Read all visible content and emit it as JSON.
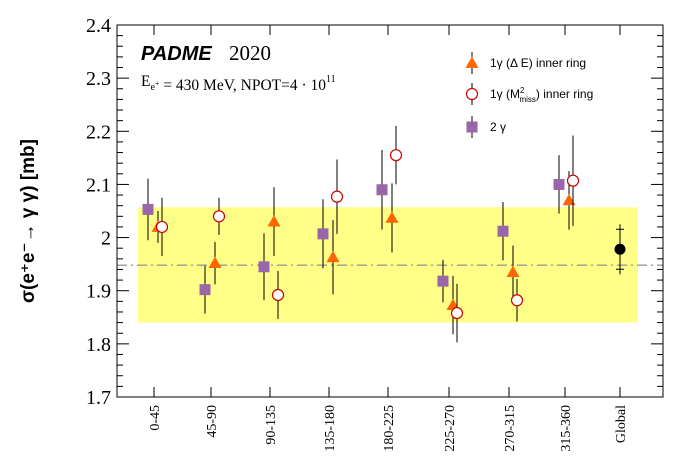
{
  "chart_data": {
    "type": "scatter",
    "title": "",
    "badge": {
      "name": "PADME",
      "year": "2020"
    },
    "conditions": {
      "energy_prefix": "E",
      "energy_sub_main": "e",
      "energy_sub_sup": "+",
      "energy_rest": " = 430 MeV, NPOT=4 · 10",
      "npot_exponent": "11"
    },
    "ylabel": "σ(e⁺e⁻→ γ γ) [mb]",
    "xlabel": "",
    "ylim": [
      1.7,
      2.4
    ],
    "yticks": [
      "1.7",
      "1.8",
      "1.9",
      "2",
      "2.1",
      "2.2",
      "2.3",
      "2.4"
    ],
    "categories": [
      "0-45",
      "45-90",
      "90-135",
      "135-180",
      "180-225",
      "225-270",
      "270-315",
      "315-360",
      "Global"
    ],
    "band": {
      "low": 1.84,
      "high": 2.057,
      "color": "#ffff88"
    },
    "reference_line": {
      "value": 1.948,
      "color": "#999999"
    },
    "series": [
      {
        "name": "1γ (Δ E) inner ring",
        "marker": "triangle",
        "color": "#ff6600",
        "points": [
          {
            "category": "0-45",
            "value": 2.02,
            "err": 0.03
          },
          {
            "category": "45-90",
            "value": 1.952,
            "err": 0.04
          },
          {
            "category": "90-135",
            "value": 2.03,
            "err": 0.065
          },
          {
            "category": "135-180",
            "value": 1.963,
            "err": 0.07
          },
          {
            "category": "180-225",
            "value": 2.037,
            "err": 0.065
          },
          {
            "category": "225-270",
            "value": 1.873,
            "err": 0.055
          },
          {
            "category": "270-315",
            "value": 1.935,
            "err": 0.05
          },
          {
            "category": "315-360",
            "value": 2.07,
            "err": 0.055
          }
        ]
      },
      {
        "name": "1γ (M²miss) inner ring",
        "marker": "open-circle",
        "color": "#cc0000",
        "points": [
          {
            "category": "0-45",
            "value": 2.02,
            "err": 0.055
          },
          {
            "category": "45-90",
            "value": 2.04,
            "err": 0.035
          },
          {
            "category": "90-135",
            "value": 1.892,
            "err": 0.045
          },
          {
            "category": "135-180",
            "value": 2.077,
            "err": 0.07
          },
          {
            "category": "180-225",
            "value": 2.155,
            "err": 0.055
          },
          {
            "category": "225-270",
            "value": 1.858,
            "err": 0.055
          },
          {
            "category": "270-315",
            "value": 1.882,
            "err": 0.04
          },
          {
            "category": "315-360",
            "value": 2.107,
            "err": 0.085
          }
        ]
      },
      {
        "name": "2 γ",
        "marker": "square",
        "color": "#9966aa",
        "points": [
          {
            "category": "0-45",
            "value": 2.053,
            "err": 0.058
          },
          {
            "category": "45-90",
            "value": 1.902,
            "err": 0.045
          },
          {
            "category": "90-135",
            "value": 1.945,
            "err": 0.063
          },
          {
            "category": "135-180",
            "value": 2.007,
            "err": 0.065
          },
          {
            "category": "180-225",
            "value": 2.09,
            "err": 0.075
          },
          {
            "category": "225-270",
            "value": 1.918,
            "err": 0.04
          },
          {
            "category": "270-315",
            "value": 2.012,
            "err": 0.055
          },
          {
            "category": "315-360",
            "value": 2.1,
            "err": 0.055
          }
        ]
      },
      {
        "name": "Global",
        "marker": "filled-circle",
        "color": "#000000",
        "points": [
          {
            "category": "Global",
            "value": 1.978,
            "err": 0.047
          }
        ]
      }
    ],
    "legend": {
      "placement": "top-right",
      "entries": [
        {
          "marker": "triangle",
          "color": "#ff6600",
          "prefix": "1γ (Δ E) inner ring"
        },
        {
          "marker": "open-circle",
          "color": "#cc0000",
          "prefix": "1γ (M",
          "sup": "2",
          "sub": "miss",
          "suffix": ") inner ring"
        },
        {
          "marker": "square",
          "color": "#9966aa",
          "prefix": "2 γ"
        }
      ]
    }
  }
}
